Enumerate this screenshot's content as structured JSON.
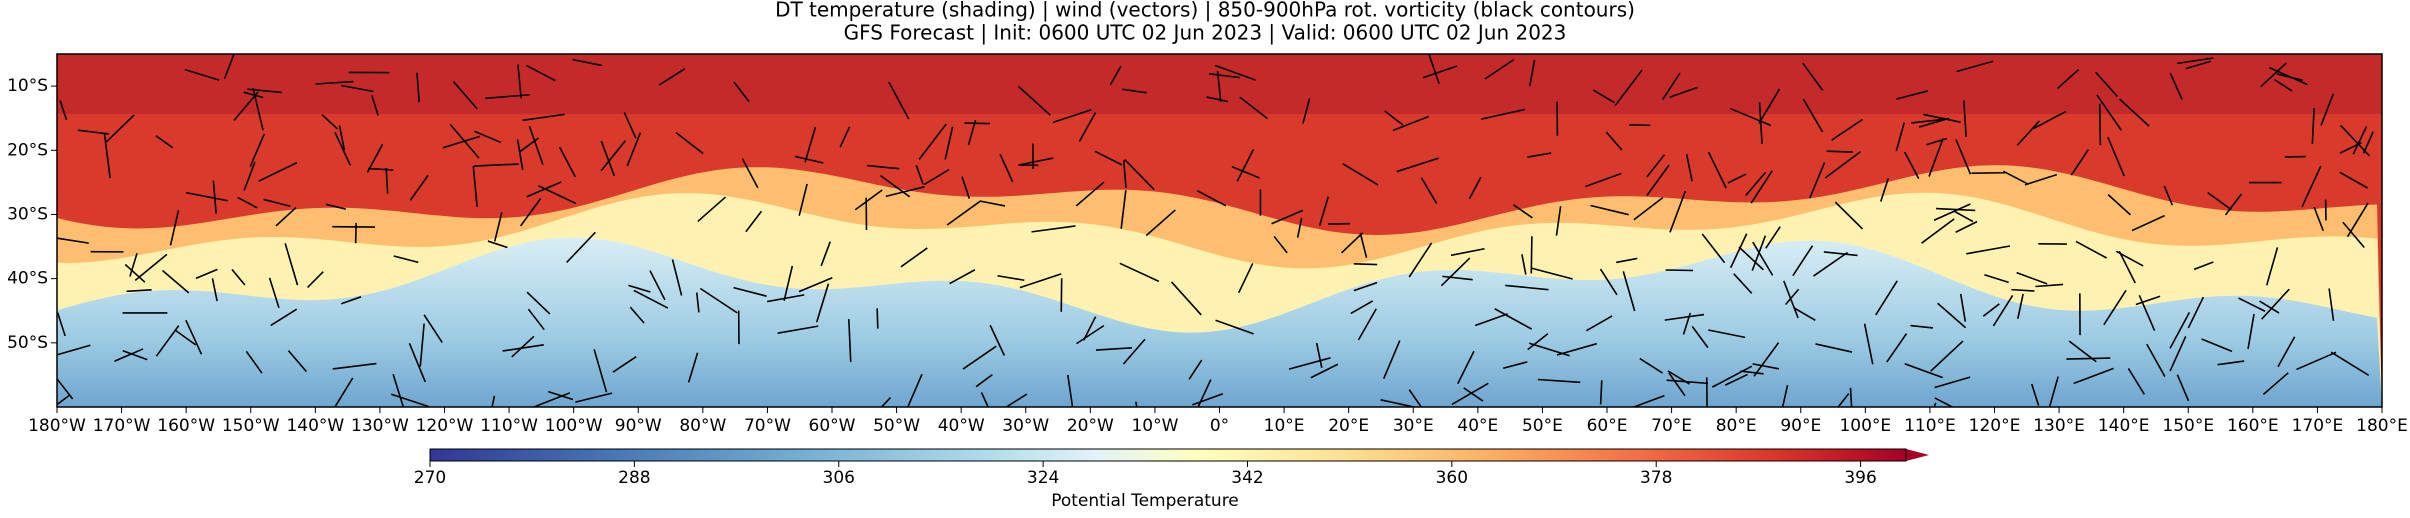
{
  "title": [
    "DT temperature (shading) | wind (vectors) | 850-900hPa rot. vorticity (black contours)",
    "GFS Forecast | Init: 0600 UTC 02 Jun 2023 | Valid: 0600 UTC 02 Jun 2023"
  ],
  "map": {
    "lonlim": [
      -180,
      180
    ],
    "latlim": [
      -60,
      -5
    ],
    "lon_ticks": [
      {
        "value": -180,
        "label": "180°W"
      },
      {
        "value": -170,
        "label": "170°W"
      },
      {
        "value": -160,
        "label": "160°W"
      },
      {
        "value": -150,
        "label": "150°W"
      },
      {
        "value": -140,
        "label": "140°W"
      },
      {
        "value": -130,
        "label": "130°W"
      },
      {
        "value": -120,
        "label": "120°W"
      },
      {
        "value": -110,
        "label": "110°W"
      },
      {
        "value": -100,
        "label": "100°W"
      },
      {
        "value": -90,
        "label": "90°W"
      },
      {
        "value": -80,
        "label": "80°W"
      },
      {
        "value": -70,
        "label": "70°W"
      },
      {
        "value": -60,
        "label": "60°W"
      },
      {
        "value": -50,
        "label": "50°W"
      },
      {
        "value": -40,
        "label": "40°W"
      },
      {
        "value": -30,
        "label": "30°W"
      },
      {
        "value": -20,
        "label": "20°W"
      },
      {
        "value": -10,
        "label": "10°W"
      },
      {
        "value": 0,
        "label": "0°"
      },
      {
        "value": 10,
        "label": "10°E"
      },
      {
        "value": 20,
        "label": "20°E"
      },
      {
        "value": 30,
        "label": "30°E"
      },
      {
        "value": 40,
        "label": "40°E"
      },
      {
        "value": 50,
        "label": "50°E"
      },
      {
        "value": 60,
        "label": "60°E"
      },
      {
        "value": 70,
        "label": "70°E"
      },
      {
        "value": 80,
        "label": "80°E"
      },
      {
        "value": 90,
        "label": "90°E"
      },
      {
        "value": 100,
        "label": "100°E"
      },
      {
        "value": 110,
        "label": "110°E"
      },
      {
        "value": 120,
        "label": "120°E"
      },
      {
        "value": 130,
        "label": "130°E"
      },
      {
        "value": 140,
        "label": "140°E"
      },
      {
        "value": 150,
        "label": "150°E"
      },
      {
        "value": 160,
        "label": "160°E"
      },
      {
        "value": 170,
        "label": "170°E"
      },
      {
        "value": 180,
        "label": "180°E"
      }
    ],
    "lat_ticks": [
      {
        "value": -10,
        "label": "10°S"
      },
      {
        "value": -20,
        "label": "20°S"
      },
      {
        "value": -30,
        "label": "30°S"
      },
      {
        "value": -40,
        "label": "40°S"
      },
      {
        "value": -50,
        "label": "50°S"
      }
    ]
  },
  "colorbar": {
    "label": "Potential Temperature",
    "clim": [
      270,
      400
    ],
    "ticks": [
      270,
      288,
      306,
      324,
      342,
      360,
      378,
      396
    ]
  }
}
